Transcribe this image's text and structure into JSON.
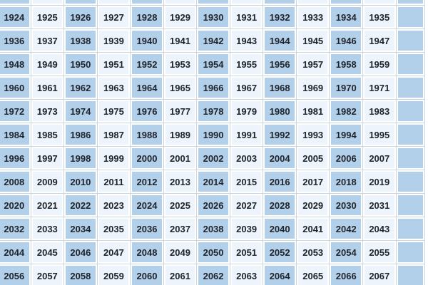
{
  "colors": {
    "cell_dark": "#b3d0eb",
    "cell_light": "#edf4fb",
    "grid_line": "#ccd6e0",
    "cell_border": "#ffffff",
    "text": "#20252c"
  },
  "chart_data": {
    "type": "table",
    "rows": [
      [
        "1924",
        "1925",
        "1926",
        "1927",
        "1928",
        "1929",
        "1930",
        "1931",
        "1932",
        "1933",
        "1934",
        "1935"
      ],
      [
        "1936",
        "1937",
        "1938",
        "1939",
        "1940",
        "1941",
        "1942",
        "1943",
        "1944",
        "1945",
        "1946",
        "1947"
      ],
      [
        "1948",
        "1949",
        "1950",
        "1951",
        "1952",
        "1953",
        "1954",
        "1955",
        "1956",
        "1957",
        "1958",
        "1959"
      ],
      [
        "1960",
        "1961",
        "1962",
        "1963",
        "1964",
        "1965",
        "1966",
        "1967",
        "1968",
        "1969",
        "1970",
        "1971"
      ],
      [
        "1972",
        "1973",
        "1974",
        "1975",
        "1976",
        "1977",
        "1978",
        "1979",
        "1980",
        "1981",
        "1982",
        "1983"
      ],
      [
        "1984",
        "1985",
        "1986",
        "1987",
        "1988",
        "1989",
        "1990",
        "1991",
        "1992",
        "1993",
        "1994",
        "1995"
      ],
      [
        "1996",
        "1997",
        "1998",
        "1999",
        "2000",
        "2001",
        "2002",
        "2003",
        "2004",
        "2005",
        "2006",
        "2007"
      ],
      [
        "2008",
        "2009",
        "2010",
        "2011",
        "2012",
        "2013",
        "2014",
        "2015",
        "2016",
        "2017",
        "2018",
        "2019"
      ],
      [
        "2020",
        "2021",
        "2022",
        "2023",
        "2024",
        "2025",
        "2026",
        "2027",
        "2028",
        "2029",
        "2030",
        "2031"
      ],
      [
        "2032",
        "2033",
        "2034",
        "2035",
        "2036",
        "2037",
        "2038",
        "2039",
        "2040",
        "2041",
        "2042",
        "2043"
      ],
      [
        "2044",
        "2045",
        "2046",
        "2047",
        "2048",
        "2049",
        "2050",
        "2051",
        "2052",
        "2053",
        "2054",
        "2055"
      ],
      [
        "2056",
        "2057",
        "2058",
        "2059",
        "2060",
        "2061",
        "2062",
        "2063",
        "2064",
        "2065",
        "2066",
        "2067"
      ]
    ]
  }
}
